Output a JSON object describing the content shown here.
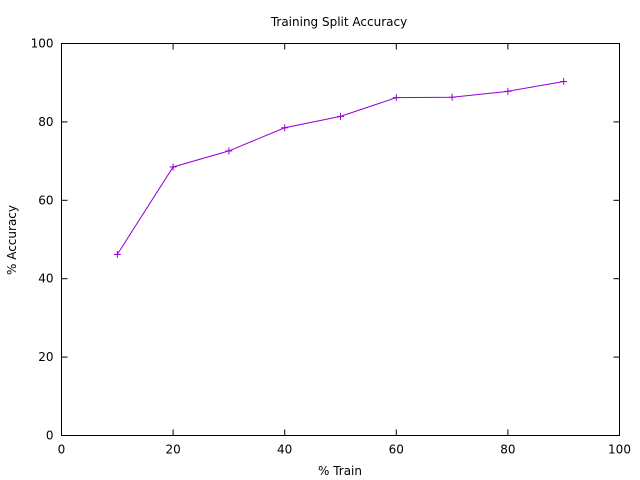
{
  "chart_data": {
    "type": "line",
    "title": "Training Split Accuracy",
    "xlabel": "% Train",
    "ylabel": "% Accuracy",
    "xlim": [
      0,
      100
    ],
    "ylim": [
      0,
      100
    ],
    "xticks": [
      0,
      20,
      40,
      60,
      80,
      100
    ],
    "yticks": [
      0,
      20,
      40,
      60,
      80,
      100
    ],
    "xtick_labels": [
      "0",
      "20",
      "40",
      "60",
      "80",
      "100"
    ],
    "ytick_labels": [
      "0",
      "20",
      "40",
      "60",
      "80",
      "100"
    ],
    "grid": false,
    "marker": "plus",
    "series": [
      {
        "color": "#9400d3",
        "x": [
          10,
          20,
          30,
          40,
          50,
          60,
          70,
          80,
          90
        ],
        "y": [
          46.2,
          68.5,
          72.6,
          78.5,
          81.4,
          86.2,
          86.3,
          87.8,
          90.3
        ]
      }
    ]
  }
}
